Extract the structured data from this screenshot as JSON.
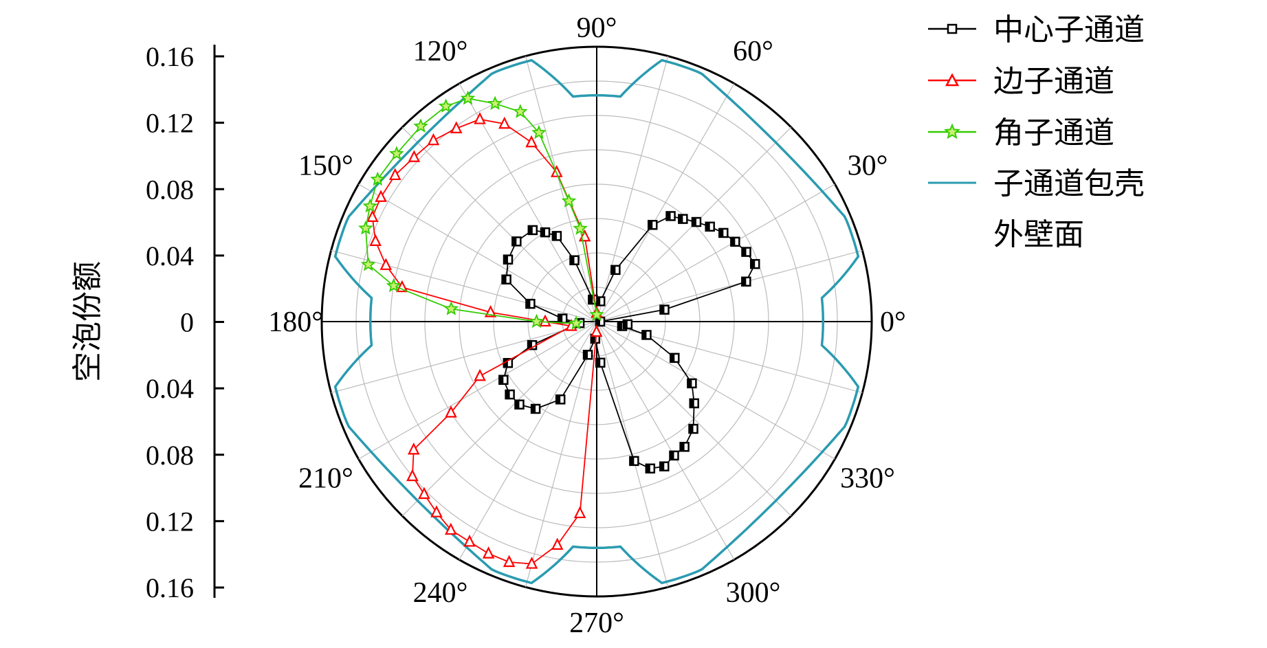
{
  "chart_data": {
    "type": "polar-line",
    "title": "",
    "ylabel": "空泡份额",
    "r_range": [
      0,
      0.16
    ],
    "r_ticks": [
      "0.16",
      "0.12",
      "0.08",
      "0.04",
      "0",
      "0.04",
      "0.08",
      "0.12",
      "0.16"
    ],
    "angle_labels": [
      "0°",
      "30°",
      "60°",
      "90°",
      "120°",
      "150°",
      "180°",
      "210°",
      "240°",
      "270°",
      "300°",
      "330°"
    ],
    "angle_label_values": [
      0,
      30,
      60,
      90,
      120,
      150,
      180,
      210,
      240,
      270,
      300,
      330
    ],
    "grid": true,
    "legend_position": "right",
    "series": [
      {
        "name": "中心子通道",
        "color": "#000000",
        "marker": "square",
        "points": [
          {
            "theta": 0,
            "r": 0.002
          },
          {
            "theta": 10,
            "r": 0.04
          },
          {
            "theta": 15,
            "r": 0.09
          },
          {
            "theta": 20,
            "r": 0.098
          },
          {
            "theta": 25,
            "r": 0.096
          },
          {
            "theta": 30,
            "r": 0.093
          },
          {
            "theta": 35,
            "r": 0.09
          },
          {
            "theta": 40,
            "r": 0.086
          },
          {
            "theta": 45,
            "r": 0.082
          },
          {
            "theta": 50,
            "r": 0.078
          },
          {
            "theta": 55,
            "r": 0.075
          },
          {
            "theta": 60,
            "r": 0.065
          },
          {
            "theta": 70,
            "r": 0.032
          },
          {
            "theta": 80,
            "r": 0.012
          },
          {
            "theta": 100,
            "r": 0.013
          },
          {
            "theta": 110,
            "r": 0.038
          },
          {
            "theta": 115,
            "r": 0.055
          },
          {
            "theta": 120,
            "r": 0.06
          },
          {
            "theta": 125,
            "r": 0.065
          },
          {
            "theta": 135,
            "r": 0.066
          },
          {
            "theta": 145,
            "r": 0.063
          },
          {
            "theta": 155,
            "r": 0.058
          },
          {
            "theta": 165,
            "r": 0.04
          },
          {
            "theta": 175,
            "r": 0.02
          },
          {
            "theta": 185,
            "r": 0.01
          },
          {
            "theta": 200,
            "r": 0.04
          },
          {
            "theta": 205,
            "r": 0.057
          },
          {
            "theta": 212,
            "r": 0.064
          },
          {
            "theta": 220,
            "r": 0.066
          },
          {
            "theta": 227,
            "r": 0.066
          },
          {
            "theta": 235,
            "r": 0.062
          },
          {
            "theta": 245,
            "r": 0.05
          },
          {
            "theta": 255,
            "r": 0.02
          },
          {
            "theta": 265,
            "r": 0.01
          },
          {
            "theta": 275,
            "r": 0.024
          },
          {
            "theta": 285,
            "r": 0.084
          },
          {
            "theta": 290,
            "r": 0.091
          },
          {
            "theta": 295,
            "r": 0.093
          },
          {
            "theta": 300,
            "r": 0.09
          },
          {
            "theta": 305,
            "r": 0.089
          },
          {
            "theta": 312,
            "r": 0.084
          },
          {
            "theta": 320,
            "r": 0.074
          },
          {
            "theta": 327,
            "r": 0.066
          },
          {
            "theta": 335,
            "r": 0.05
          },
          {
            "theta": 345,
            "r": 0.03
          },
          {
            "theta": 350,
            "r": 0.015
          },
          {
            "theta": 355,
            "r": 0.018
          }
        ]
      },
      {
        "name": "边子通道",
        "color": "#ff0000",
        "marker": "triangle",
        "points": [
          {
            "theta": 90,
            "r": 0.005
          },
          {
            "theta": 98,
            "r": 0.05
          },
          {
            "theta": 105,
            "r": 0.09
          },
          {
            "theta": 110,
            "r": 0.111
          },
          {
            "theta": 115,
            "r": 0.127
          },
          {
            "theta": 120,
            "r": 0.136
          },
          {
            "theta": 126,
            "r": 0.139
          },
          {
            "theta": 132,
            "r": 0.142
          },
          {
            "theta": 138,
            "r": 0.143
          },
          {
            "theta": 144,
            "r": 0.145
          },
          {
            "theta": 150,
            "r": 0.145
          },
          {
            "theta": 155,
            "r": 0.144
          },
          {
            "theta": 160,
            "r": 0.137
          },
          {
            "theta": 165,
            "r": 0.127
          },
          {
            "theta": 170,
            "r": 0.115
          },
          {
            "theta": 175,
            "r": 0.062
          },
          {
            "theta": 180,
            "r": 0.03
          },
          {
            "theta": 190,
            "r": 0.015
          },
          {
            "theta": 205,
            "r": 0.075
          },
          {
            "theta": 212,
            "r": 0.1
          },
          {
            "theta": 215,
            "r": 0.13
          },
          {
            "theta": 220,
            "r": 0.14
          },
          {
            "theta": 225,
            "r": 0.142
          },
          {
            "theta": 230,
            "r": 0.145
          },
          {
            "theta": 235,
            "r": 0.148
          },
          {
            "theta": 240,
            "r": 0.148
          },
          {
            "theta": 245,
            "r": 0.149
          },
          {
            "theta": 250,
            "r": 0.149
          },
          {
            "theta": 255,
            "r": 0.146
          },
          {
            "theta": 260,
            "r": 0.132
          },
          {
            "theta": 265,
            "r": 0.112
          },
          {
            "theta": 269,
            "r": 0.006
          }
        ]
      },
      {
        "name": "角子通道",
        "color": "#33cc00",
        "marker": "star",
        "points": [
          {
            "theta": 90,
            "r": 0.004
          },
          {
            "theta": 100,
            "r": 0.055
          },
          {
            "theta": 103,
            "r": 0.072
          },
          {
            "theta": 107,
            "r": 0.115
          },
          {
            "theta": 110,
            "r": 0.13
          },
          {
            "theta": 115,
            "r": 0.14
          },
          {
            "theta": 120,
            "r": 0.15
          },
          {
            "theta": 125,
            "r": 0.153
          },
          {
            "theta": 132,
            "r": 0.153
          },
          {
            "theta": 140,
            "r": 0.152
          },
          {
            "theta": 147,
            "r": 0.152
          },
          {
            "theta": 153,
            "r": 0.148
          },
          {
            "theta": 158,
            "r": 0.145
          },
          {
            "theta": 166,
            "r": 0.137
          },
          {
            "theta": 170,
            "r": 0.12
          },
          {
            "theta": 175,
            "r": 0.085
          },
          {
            "theta": 180,
            "r": 0.035
          },
          {
            "theta": 185,
            "r": 0.012
          }
        ]
      }
    ],
    "boundary": {
      "name": "子通道包壳外壁面",
      "color": "#2a9bb0"
    }
  },
  "legend": {
    "items": [
      {
        "label": "中心子通道",
        "color": "#000000",
        "marker": "square"
      },
      {
        "label": "边子通道",
        "color": "#ff0000",
        "marker": "triangle"
      },
      {
        "label": "角子通道",
        "color": "#33cc00",
        "marker": "star"
      },
      {
        "label": "子通道包壳",
        "label2": "外壁面",
        "color": "#2a9bb0",
        "marker": "line"
      }
    ]
  }
}
